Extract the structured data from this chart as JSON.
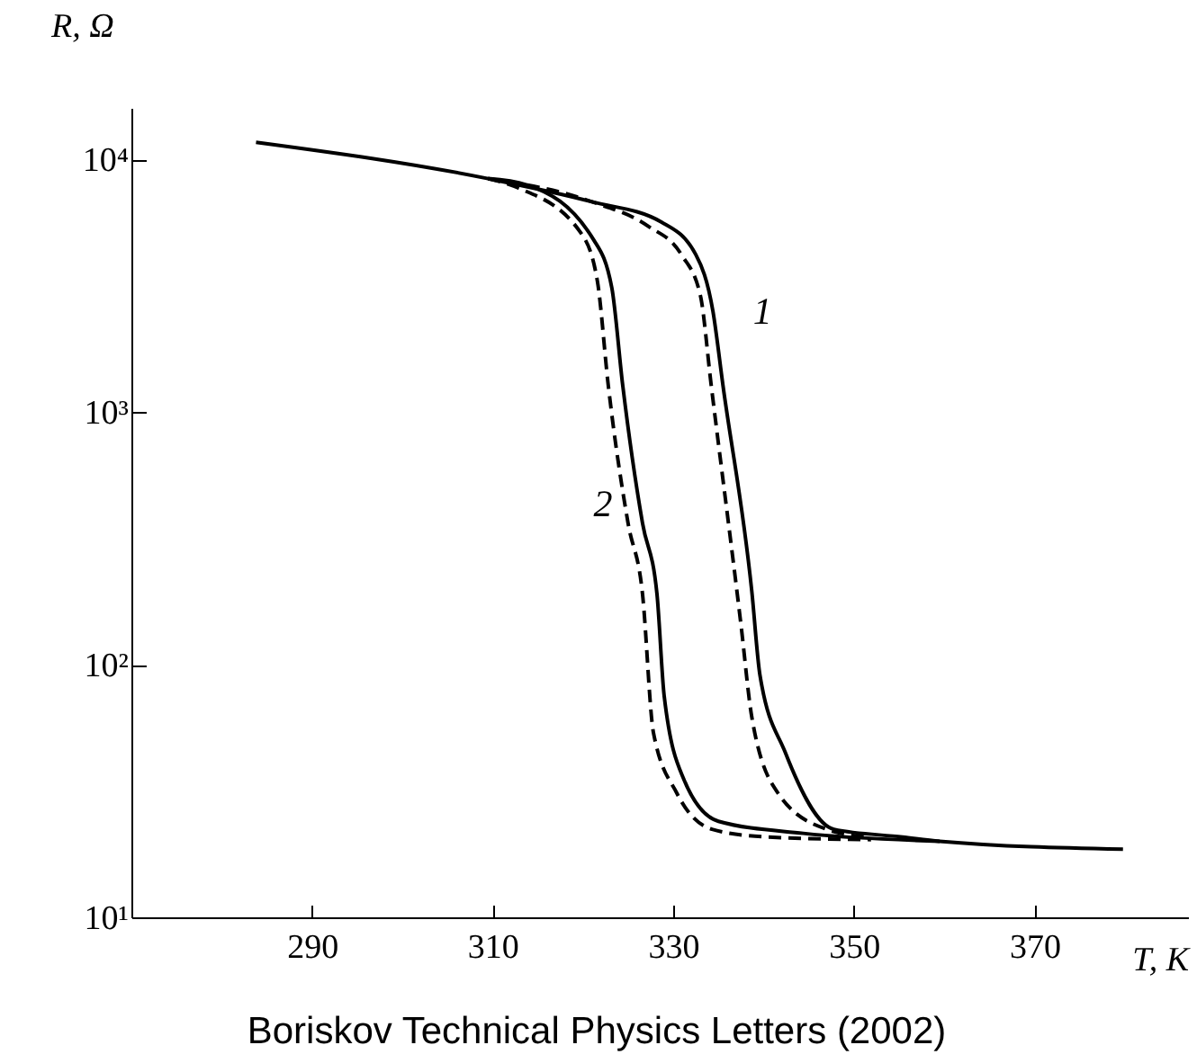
{
  "chart_data": {
    "type": "line",
    "xlabel": "T, K",
    "ylabel": "R, Ω",
    "log": "y",
    "grid": false,
    "marker": "none",
    "xlim": [
      270,
      387
    ],
    "xticks": [
      290,
      310,
      330,
      350,
      370
    ],
    "ylim": [
      10,
      16000
    ],
    "yticks": [
      {
        "value": 10,
        "label": "10¹"
      },
      {
        "value": 100,
        "label": "10²"
      },
      {
        "value": 1000,
        "label": "10³"
      },
      {
        "value": 10000,
        "label": "10⁴"
      }
    ],
    "series": [
      {
        "name": "1",
        "color": "#000000",
        "line_style": "solid",
        "x": [
          283.8,
          309.5,
          321,
          328.7,
          332.5,
          334.4,
          335.5,
          338.7,
          339.6,
          342.4,
          347.8,
          355.4,
          359.5,
          379.8
        ],
        "values": [
          11700,
          8400,
          6800,
          5650,
          4200,
          2500,
          1280,
          195,
          91,
          45,
          22.3,
          20.8,
          20,
          18.6
        ]
      },
      {
        "color": "#000000",
        "line_style": "dashed",
        "x": [
          309.5,
          321,
          327.2,
          330.9,
          333,
          334.2,
          337.5,
          338.7,
          341.6,
          347,
          351.6
        ],
        "values": [
          8400,
          6800,
          5450,
          4200,
          2900,
          1280,
          144,
          62,
          31,
          22.3,
          20.8
        ]
      },
      {
        "name": "2",
        "color": "#000000",
        "line_style": "solid",
        "x": [
          309.5,
          313.7,
          321.2,
          323.2,
          324.4,
          326.6,
          328.2,
          329,
          331.2,
          335,
          344.4,
          359.5
        ],
        "values": [
          8400,
          7950,
          4800,
          3100,
          1280,
          363,
          190,
          75,
          35,
          24,
          21.5,
          20
        ]
      },
      {
        "color": "#000000",
        "line_style": "dashed",
        "x": [
          309.5,
          312.9,
          319.8,
          321.6,
          322.8,
          325,
          326.6,
          327.8,
          330.4,
          334.3,
          340.3,
          351.9
        ],
        "values": [
          8400,
          7700,
          5100,
          3300,
          1280,
          363,
          190,
          54,
          31,
          22.3,
          20.8,
          20.3
        ]
      }
    ],
    "annotations": [
      "Boriskov Technical Physics Letters (2002)"
    ]
  }
}
